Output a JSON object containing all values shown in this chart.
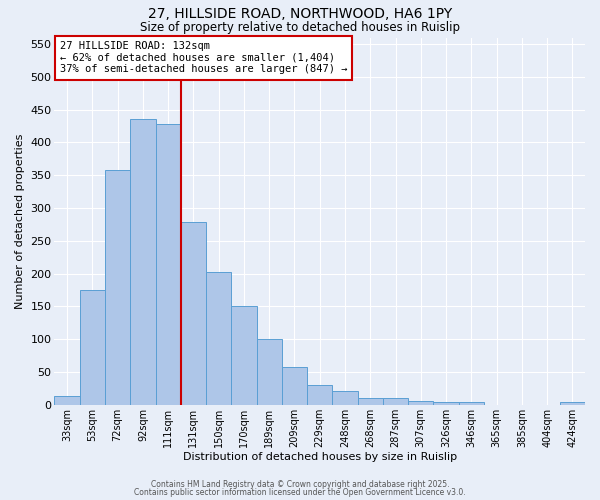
{
  "title_line1": "27, HILLSIDE ROAD, NORTHWOOD, HA6 1PY",
  "title_line2": "Size of property relative to detached houses in Ruislip",
  "xlabel": "Distribution of detached houses by size in Ruislip",
  "ylabel": "Number of detached properties",
  "categories": [
    "33sqm",
    "53sqm",
    "72sqm",
    "92sqm",
    "111sqm",
    "131sqm",
    "150sqm",
    "170sqm",
    "189sqm",
    "209sqm",
    "229sqm",
    "248sqm",
    "268sqm",
    "287sqm",
    "307sqm",
    "326sqm",
    "346sqm",
    "365sqm",
    "385sqm",
    "404sqm",
    "424sqm"
  ],
  "values": [
    13,
    175,
    358,
    435,
    428,
    278,
    202,
    150,
    100,
    58,
    30,
    21,
    11,
    11,
    6,
    5,
    4,
    0,
    0,
    0,
    5
  ],
  "bar_color": "#aec6e8",
  "bar_edge_color": "#5a9fd4",
  "vline_index": 5,
  "vline_color": "#cc0000",
  "annotation_text": "27 HILLSIDE ROAD: 132sqm\n← 62% of detached houses are smaller (1,404)\n37% of semi-detached houses are larger (847) →",
  "annotation_box_color": "#ffffff",
  "annotation_box_edge": "#cc0000",
  "ylim": [
    0,
    560
  ],
  "yticks": [
    0,
    50,
    100,
    150,
    200,
    250,
    300,
    350,
    400,
    450,
    500,
    550
  ],
  "background_color": "#e8eef8",
  "grid_color": "#ffffff",
  "footer_line1": "Contains HM Land Registry data © Crown copyright and database right 2025.",
  "footer_line2": "Contains public sector information licensed under the Open Government Licence v3.0."
}
